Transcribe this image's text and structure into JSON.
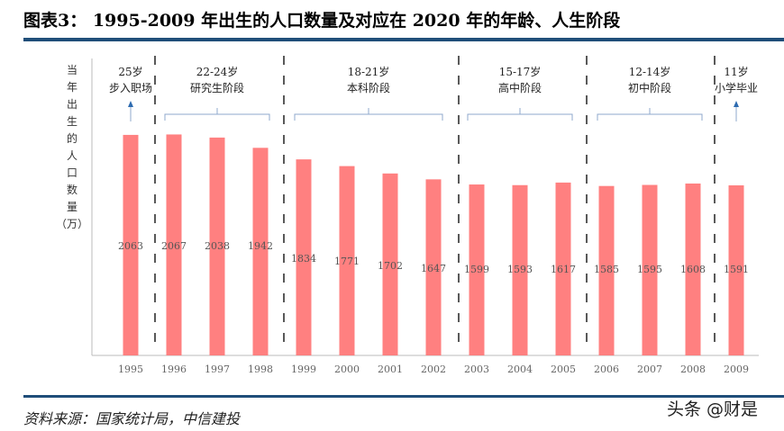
{
  "title": "图表3：  1995-2009 年出生的人口数量及对应在 2020 年的年龄、人生阶段",
  "source": "资料来源：国家统计局，中信建投",
  "watermark": "头条 @财是",
  "chart_data": {
    "type": "bar",
    "ylabel": "当年出生的人口数量（万）",
    "ylabel_chars": [
      "当",
      "年",
      "出",
      "生",
      "的",
      "人",
      "口",
      "数",
      "量",
      "（万）"
    ],
    "categories": [
      "1995",
      "1996",
      "1997",
      "1998",
      "1999",
      "2000",
      "2001",
      "2002",
      "2003",
      "2004",
      "2005",
      "2006",
      "2007",
      "2008",
      "2009"
    ],
    "values": [
      2063,
      2067,
      2038,
      1942,
      1834,
      1771,
      1702,
      1647,
      1599,
      1593,
      1617,
      1585,
      1595,
      1608,
      1591
    ],
    "bar_color": "#ff8080",
    "groups": [
      {
        "age": "25岁",
        "stage": "步入职场",
        "from": 0,
        "to": 0,
        "marker": "arrow"
      },
      {
        "age": "22-24岁",
        "stage": "研究生阶段",
        "from": 1,
        "to": 3,
        "marker": "bracket"
      },
      {
        "age": "18-21岁",
        "stage": "本科阶段",
        "from": 4,
        "to": 7,
        "marker": "bracket"
      },
      {
        "age": "15-17岁",
        "stage": "高中阶段",
        "from": 8,
        "to": 10,
        "marker": "bracket"
      },
      {
        "age": "12-14岁",
        "stage": "初中阶段",
        "from": 11,
        "to": 13,
        "marker": "bracket"
      },
      {
        "age": "11岁",
        "stage": "小学毕业",
        "from": 14,
        "to": 14,
        "marker": "arrow"
      }
    ]
  }
}
